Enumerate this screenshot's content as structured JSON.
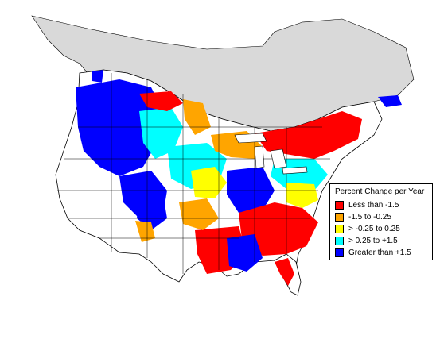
{
  "map": {
    "region_fill": "#d9d9d9",
    "land_fill": "#ffffff",
    "boundary_color": "#000000"
  },
  "legend": {
    "title": "Percent Change per Year",
    "items": [
      {
        "label": "Less than -1.5",
        "color": "#ff0000"
      },
      {
        "label": "-1.5 to -0.25",
        "color": "#ffa500"
      },
      {
        "label": "> -0.25 to 0.25",
        "color": "#ffff00"
      },
      {
        "label": "> 0.25 to +1.5",
        "color": "#00ffff"
      },
      {
        "label": "Greater than +1.5",
        "color": "#0000ff"
      }
    ]
  }
}
